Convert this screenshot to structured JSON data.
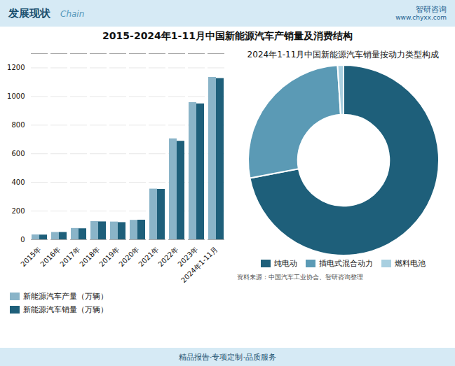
{
  "chart_data": [
    {
      "type": "bar",
      "title": "2015-2024年1-11月中国新能源汽车产销量及消费结构",
      "categories": [
        "2015年",
        "2016年",
        "2017年",
        "2018年",
        "2019年",
        "2020年",
        "2021年",
        "2022年",
        "2023年",
        "2024年1-11月"
      ],
      "series": [
        {
          "name": "新能源汽车产量（万辆）",
          "color": "#8ab4c8",
          "values": [
            34,
            51,
            79,
            127,
            124,
            136,
            354,
            705,
            958,
            1134
          ]
        },
        {
          "name": "新能源汽车销量（万辆）",
          "color": "#1e5f7a",
          "values": [
            33,
            51,
            77,
            125,
            120,
            137,
            352,
            688,
            949,
            1126
          ]
        }
      ],
      "ylim": [
        0,
        1300
      ],
      "yticks": [
        0,
        200,
        400,
        600,
        800,
        1000,
        1200
      ],
      "grid": true,
      "legend": "bottom",
      "annotations": [
        "发展现状",
        "Chain",
        "智研咨询",
        "www.chyxx.com",
        "精品报告·专项定制·品质服务"
      ]
    },
    {
      "type": "pie",
      "title": "2024年1-11月中国新能源汽车销量按动力类型构成",
      "categories": [
        "纯电动",
        "插电式混合动力",
        "燃料电池"
      ],
      "values": [
        72,
        27,
        1
      ],
      "colors": [
        "#1e5f7a",
        "#5b9ab5",
        "#a8cfe0"
      ],
      "legend": "bottom",
      "annotations": [
        "资料来源：中国汽车工业协会、智研咨询整理"
      ]
    }
  ]
}
